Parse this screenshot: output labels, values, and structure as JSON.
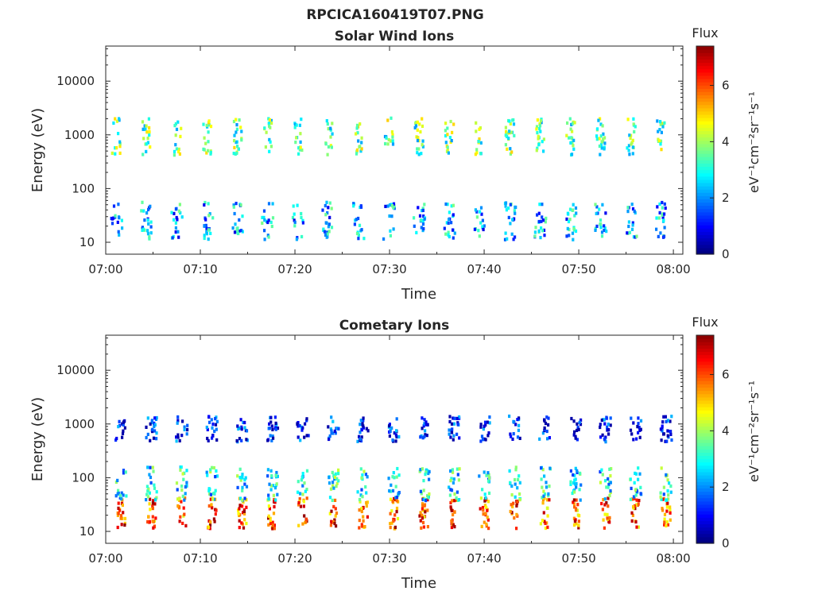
{
  "figure_title": "RPCICA160419T07.PNG",
  "chart_data": [
    {
      "type": "heatmap",
      "title": "Solar Wind Ions",
      "xlabel": "Time",
      "ylabel": "Energy (eV)",
      "yscale": "log",
      "xlim": [
        "07:00",
        "08:01"
      ],
      "ylim": [
        6,
        45000
      ],
      "xticks": [
        "07:00",
        "07:10",
        "07:20",
        "07:30",
        "07:40",
        "07:50",
        "08:00"
      ],
      "yticks": [
        "10",
        "100",
        "1000",
        "10000"
      ],
      "colorbar": {
        "title": "Flux",
        "label": "eV⁻¹cm⁻²sr⁻¹s⁻¹",
        "range": [
          0,
          7.4
        ],
        "ticks": [
          "0",
          "2",
          "4",
          "6"
        ],
        "colormap": "jet"
      },
      "bursts": {
        "period_minutes": 3.2,
        "first_minute": 1.0,
        "count": 19,
        "bands": [
          {
            "energy_range_eV": [
              450,
              2200
            ],
            "typical_flux": 3.5
          },
          {
            "energy_range_eV": [
              12,
              60
            ],
            "typical_flux": 2.2
          }
        ]
      },
      "grid": false
    },
    {
      "type": "heatmap",
      "title": "Cometary Ions",
      "xlabel": "Time",
      "ylabel": "Energy (eV)",
      "yscale": "log",
      "xlim": [
        "07:00",
        "08:01"
      ],
      "ylim": [
        6,
        45000
      ],
      "xticks": [
        "07:00",
        "07:10",
        "07:20",
        "07:30",
        "07:40",
        "07:50",
        "08:00"
      ],
      "yticks": [
        "10",
        "100",
        "1000",
        "10000"
      ],
      "colorbar": {
        "title": "Flux",
        "label": "eV⁻¹cm⁻²sr⁻¹s⁻¹",
        "range": [
          0,
          7.4
        ],
        "ticks": [
          "0",
          "2",
          "4",
          "6"
        ],
        "colormap": "jet"
      },
      "bursts": {
        "period_minutes": 3.2,
        "first_minute": 1.5,
        "count": 19,
        "bands": [
          {
            "energy_range_eV": [
              12,
              45
            ],
            "typical_flux": 5.8
          },
          {
            "energy_range_eV": [
              40,
              170
            ],
            "typical_flux": 2.8
          },
          {
            "energy_range_eV": [
              500,
              1500
            ],
            "typical_flux": 0.9
          }
        ]
      },
      "grid": false
    }
  ]
}
